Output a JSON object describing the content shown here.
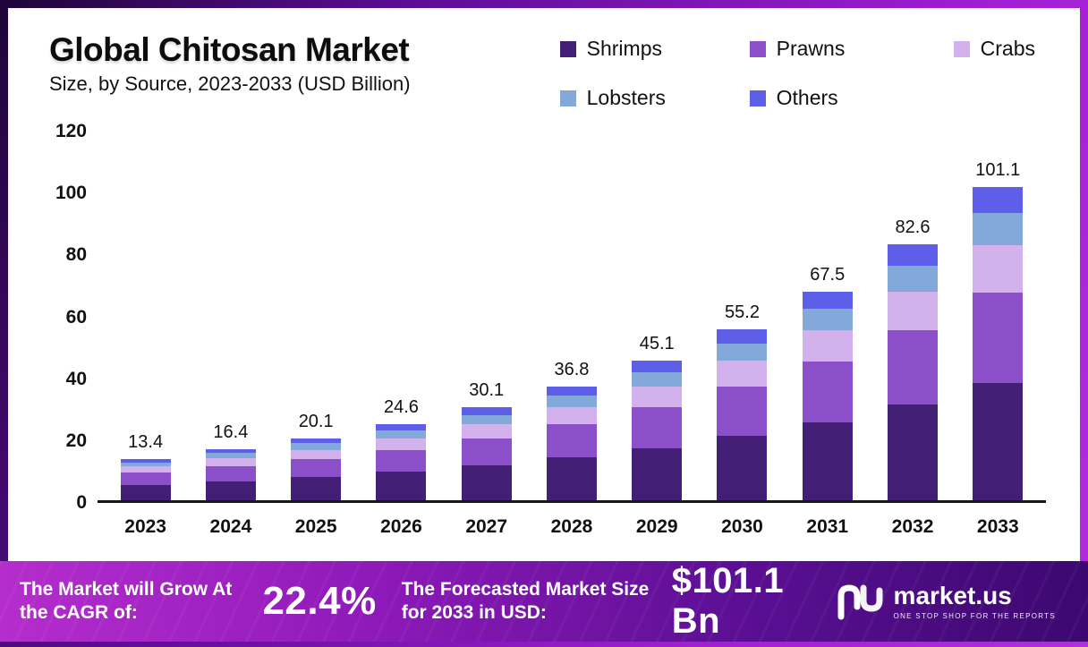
{
  "chart": {
    "title": "Global Chitosan Market",
    "subtitle": "Size, by Source, 2023-2033 (USD Billion)"
  },
  "chart_data": {
    "type": "bar",
    "stacked": true,
    "title": "Global Chitosan Market Size, by Source, 2023-2033 (USD Billion)",
    "xlabel": "",
    "ylabel": "",
    "ylim": [
      0,
      120
    ],
    "yticks": [
      0,
      20,
      40,
      60,
      80,
      100,
      120
    ],
    "grid": false,
    "legend_position": "top-right",
    "categories": [
      "2023",
      "2024",
      "2025",
      "2026",
      "2027",
      "2028",
      "2029",
      "2030",
      "2031",
      "2032",
      "2033"
    ],
    "totals": [
      13.4,
      16.4,
      20.1,
      24.6,
      30.1,
      36.8,
      45.1,
      55.2,
      67.5,
      82.6,
      101.1
    ],
    "series": [
      {
        "name": "Shrimps",
        "color": "#421e75",
        "values": [
          5.0,
          6.2,
          7.5,
          9.2,
          11.3,
          13.8,
          16.9,
          20.7,
          25.3,
          31.0,
          37.9
        ]
      },
      {
        "name": "Prawns",
        "color": "#8b4fc9",
        "values": [
          3.9,
          4.8,
          5.8,
          7.1,
          8.7,
          10.7,
          13.1,
          16.0,
          19.6,
          24.0,
          29.3
        ]
      },
      {
        "name": "Crabs",
        "color": "#d2b1ec",
        "values": [
          2.0,
          2.5,
          3.0,
          3.7,
          4.5,
          5.5,
          6.8,
          8.3,
          10.1,
          12.4,
          15.2
        ]
      },
      {
        "name": "Lobsters",
        "color": "#83a9da",
        "values": [
          1.4,
          1.7,
          2.1,
          2.6,
          3.1,
          3.8,
          4.7,
          5.7,
          7.0,
          8.5,
          10.4
        ]
      },
      {
        "name": "Others",
        "color": "#5d5fe8",
        "values": [
          1.1,
          1.2,
          1.7,
          2.0,
          2.5,
          3.0,
          3.6,
          4.5,
          5.5,
          6.7,
          8.3
        ]
      }
    ]
  },
  "banner": {
    "cagr_label": "The Market will Grow At the CAGR of:",
    "cagr_value": "22.4%",
    "forecast_label": "The Forecasted Market Size for 2033 in USD:",
    "forecast_value": "$101.1 Bn",
    "brand": "market.us",
    "tagline": "ONE STOP SHOP FOR THE REPORTS"
  }
}
